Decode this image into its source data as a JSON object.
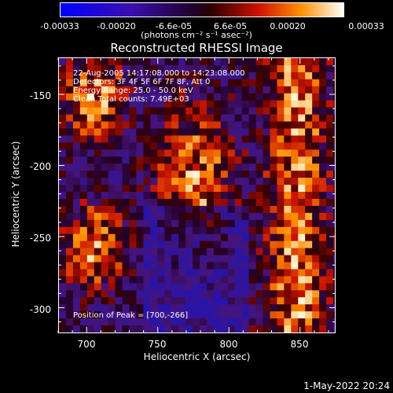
{
  "colorbar": {
    "tick_labels": [
      "-0.00033",
      "-0.00020",
      "-6.6e-05",
      "6.6e-05",
      "0.00020",
      "0.00033"
    ],
    "units": "(photons cm⁻² s⁻¹ asec⁻²)",
    "range": [
      -0.00033,
      0.00033
    ]
  },
  "chart_data": {
    "type": "heatmap",
    "title": "Reconstructed RHESSI Image",
    "xlabel": "Heliocentric X (arcsec)",
    "ylabel": "Heliocentric Y (arcsec)",
    "xlim": [
      680,
      875
    ],
    "ylim": [
      -318,
      -124
    ],
    "xticks": [
      700,
      750,
      800,
      850
    ],
    "yticks": [
      -150,
      -200,
      -250,
      -300
    ],
    "grid": false,
    "annotations": [
      "22-Aug-2005 14:17:08.000 to 14:23:08.000",
      "Detectors: 3F 4F 5F 6F 7F 8F, Att 0",
      "Energy Range: 25.0 - 50.0 keV",
      "Clean     Total counts: 7.49E+03"
    ],
    "peak_label": "Position of Peak = [700,-266]",
    "peak": [
      700,
      -266
    ]
  },
  "footer": {
    "timestamp": "1-May-2022 20:24"
  }
}
